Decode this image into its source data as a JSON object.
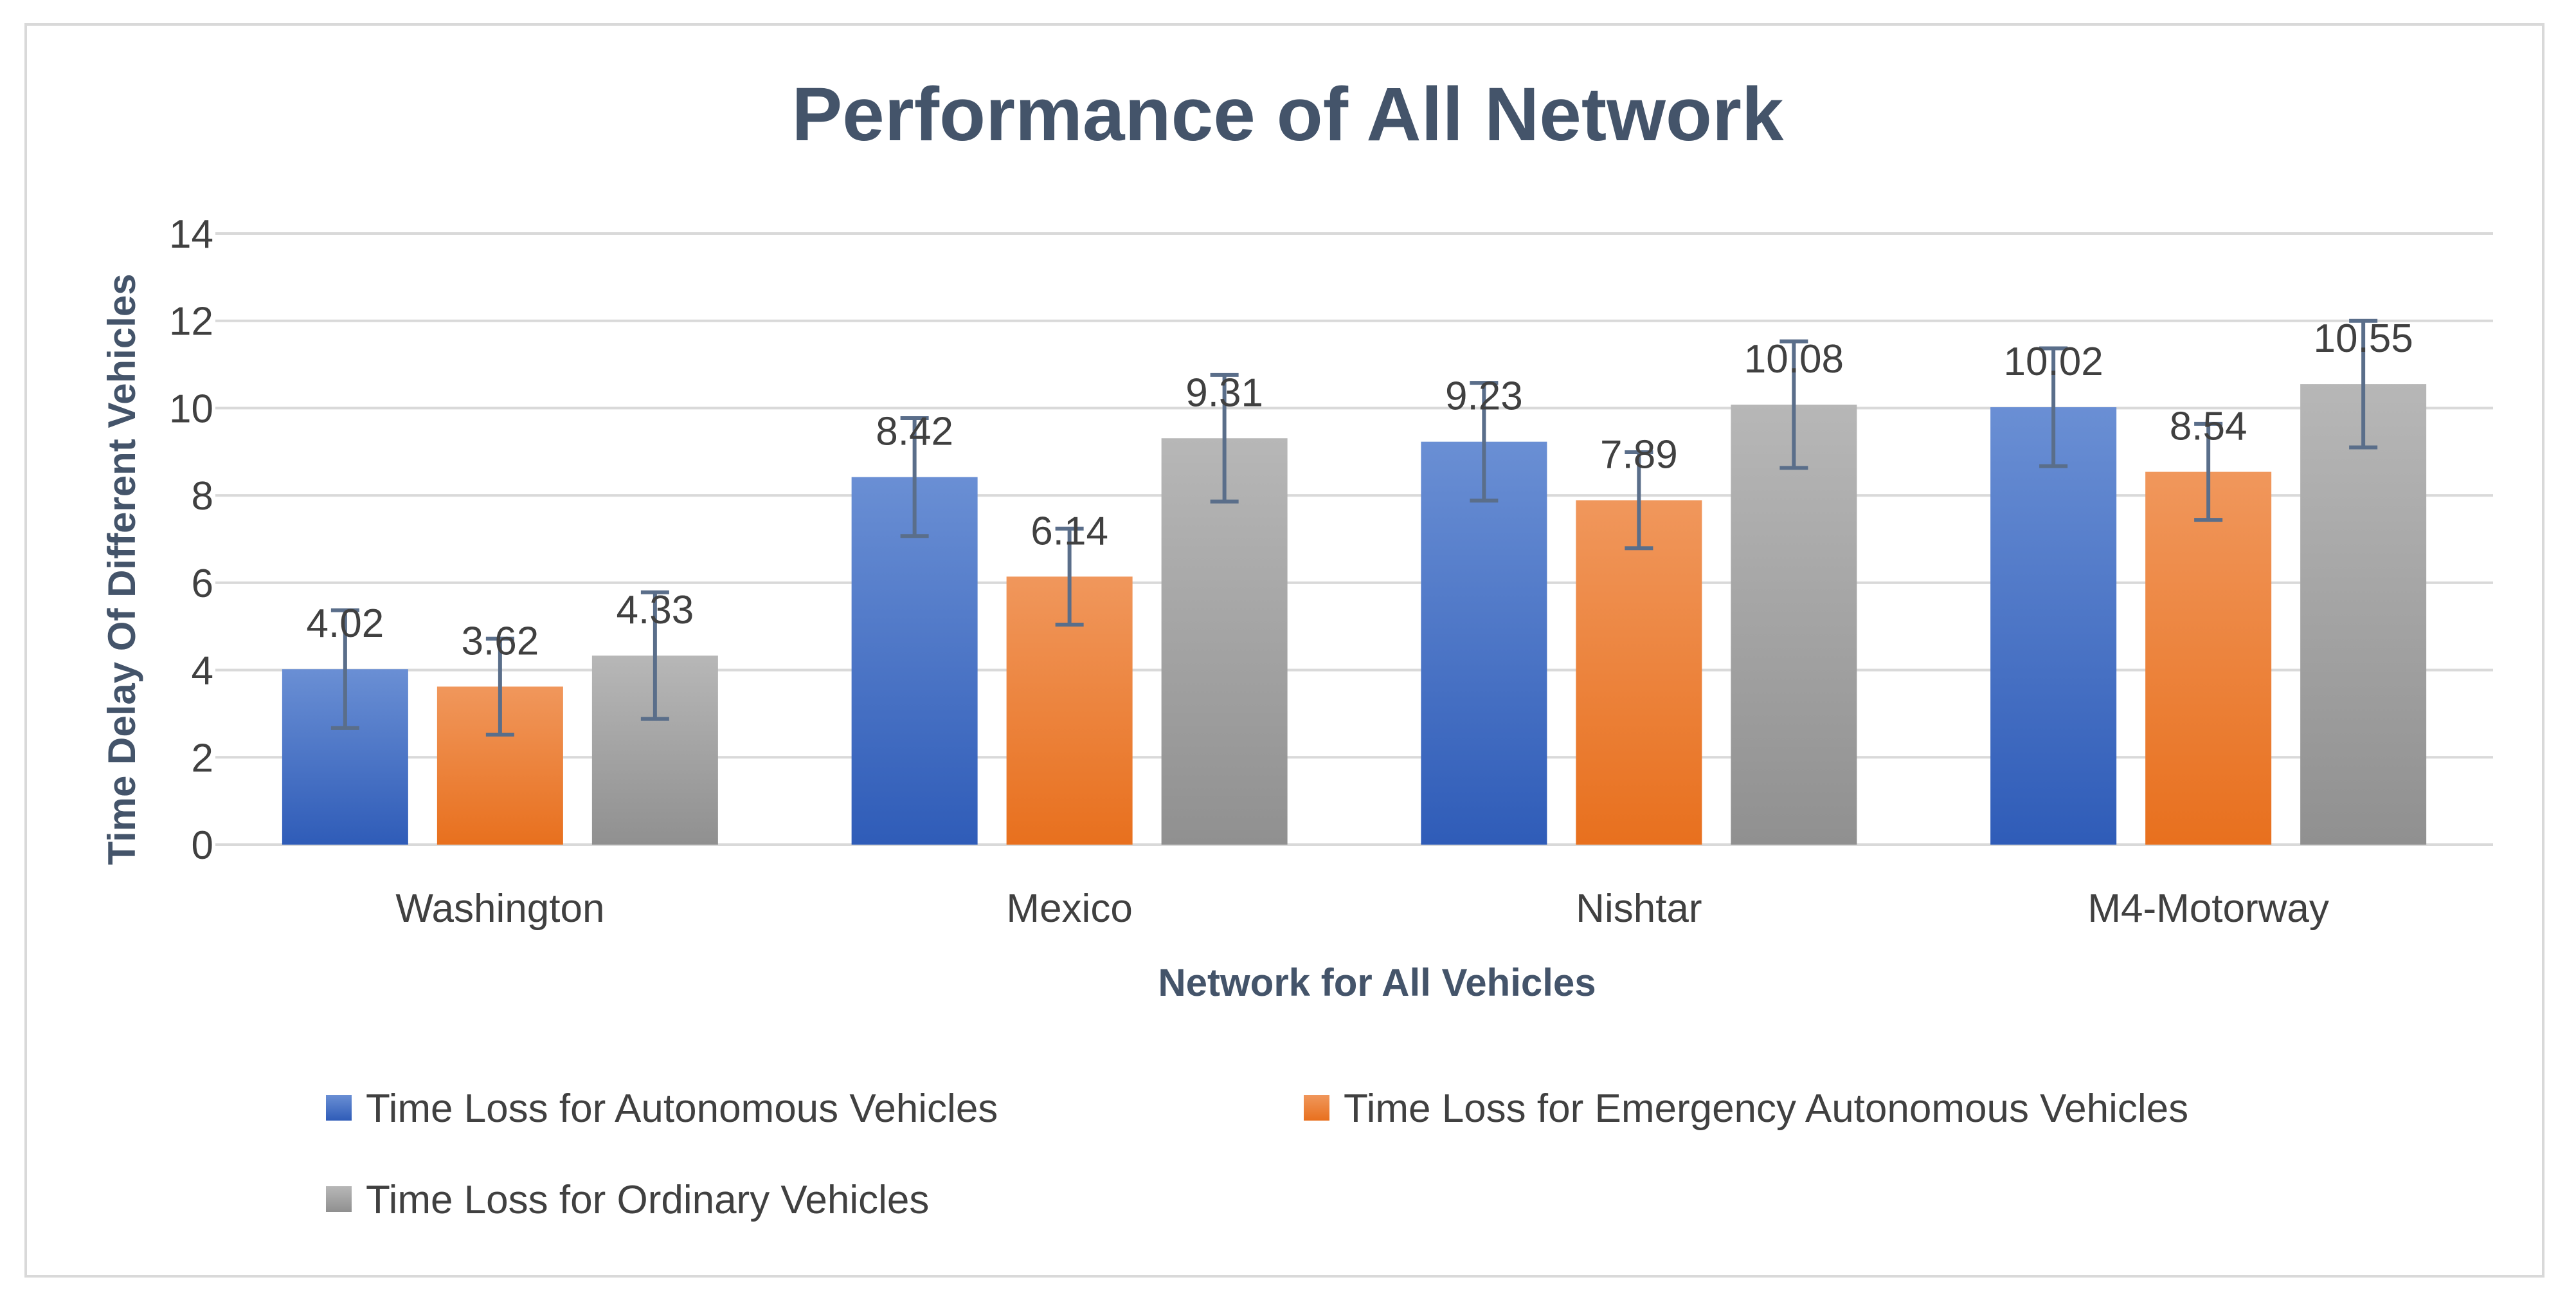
{
  "chart_data": {
    "type": "bar",
    "title": "Performance of All Network",
    "xlabel": "Network for All Vehicles",
    "ylabel": "Time Delay Of Different Vehicles",
    "ylim": [
      0,
      14
    ],
    "yticks": [
      0,
      2,
      4,
      6,
      8,
      10,
      12,
      14
    ],
    "grid": true,
    "legend_position": "bottom",
    "categories": [
      "Washington",
      "Mexico",
      "Nishtar",
      "M4-Motorway"
    ],
    "series": [
      {
        "name": "Time Loss for Autonomous Vehicles",
        "values": [
          4.02,
          8.42,
          9.23,
          10.02
        ],
        "labels": [
          "4.02",
          "8.42",
          "9.23",
          "10.02"
        ],
        "error": [
          1.35,
          1.35,
          1.35,
          1.35
        ],
        "color": "#4472c4",
        "color_top": "#6a8fd4",
        "color_bottom": "#2f5cb8"
      },
      {
        "name": "Time Loss for Emergency Autonomous Vehicles",
        "values": [
          3.62,
          6.14,
          7.89,
          8.54
        ],
        "labels": [
          "3.62",
          "6.14",
          "7.89",
          "8.54"
        ],
        "error": [
          1.1,
          1.1,
          1.1,
          1.1
        ],
        "color": "#ed7d31",
        "color_top": "#f0975c",
        "color_bottom": "#e8701e"
      },
      {
        "name": "Time Loss for Ordinary Vehicles",
        "values": [
          4.33,
          9.31,
          10.08,
          10.55
        ],
        "labels": [
          "4.33",
          "9.31",
          "10.08",
          "10.55"
        ],
        "error": [
          1.45,
          1.45,
          1.45,
          1.45
        ],
        "color": "#a5a5a5",
        "color_top": "#b7b7b7",
        "color_bottom": "#909090"
      }
    ],
    "colors": {
      "grid": "#d9d9d9",
      "axis": "#d9d9d9",
      "error_bar": "#5a6e8a",
      "title": "#44546a"
    }
  }
}
